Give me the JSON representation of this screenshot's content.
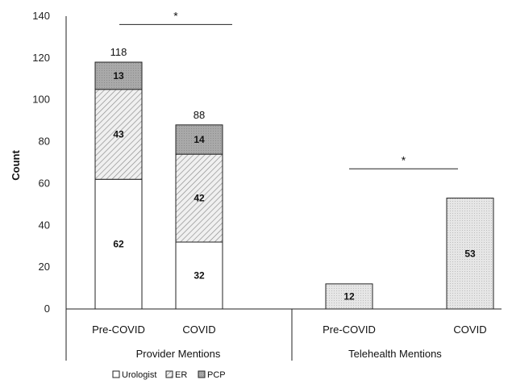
{
  "chart_data": {
    "type": "bar",
    "stacked": true,
    "ylabel": "Count",
    "ylim": [
      0,
      140
    ],
    "yticks": [
      0,
      20,
      40,
      60,
      80,
      100,
      120,
      140
    ],
    "groups": [
      {
        "label": "Provider Mentions",
        "categories": [
          "Pre-COVID",
          "COVID"
        ]
      },
      {
        "label": "Telehealth Mentions",
        "categories": [
          "Pre-COVID",
          "COVID"
        ]
      }
    ],
    "bars": [
      {
        "group": 0,
        "category": "Pre-COVID",
        "total": "118",
        "segments": [
          {
            "series": "Urologist",
            "value": 62,
            "label": "62"
          },
          {
            "series": "ER",
            "value": 43,
            "label": "43"
          },
          {
            "series": "PCP",
            "value": 13,
            "label": "13"
          }
        ]
      },
      {
        "group": 0,
        "category": "COVID",
        "total": "88",
        "segments": [
          {
            "series": "Urologist",
            "value": 32,
            "label": "32"
          },
          {
            "series": "ER",
            "value": 42,
            "label": "42"
          },
          {
            "series": "PCP",
            "value": 14,
            "label": "14"
          }
        ]
      },
      {
        "group": 1,
        "category": "Pre-COVID",
        "total": "",
        "segments": [
          {
            "series": "Telehealth",
            "value": 12,
            "label": "12"
          }
        ]
      },
      {
        "group": 1,
        "category": "COVID",
        "total": "",
        "segments": [
          {
            "series": "Telehealth",
            "value": 53,
            "label": "53"
          }
        ]
      }
    ],
    "legend": {
      "position": "bottom",
      "items": [
        {
          "series": "Urologist",
          "label": "Urologist"
        },
        {
          "series": "ER",
          "label": "ER"
        },
        {
          "series": "PCP",
          "label": "PCP"
        }
      ]
    },
    "significance": [
      {
        "group": 0,
        "y": 136,
        "label": "*"
      },
      {
        "group": 1,
        "y": 67,
        "label": "*"
      }
    ],
    "colors": {
      "Urologist": "#ffffff",
      "ER": "#e4e4e4",
      "PCP": "#a6a6a6",
      "Telehealth": "#dcdcdc",
      "axis": "#222222"
    }
  }
}
